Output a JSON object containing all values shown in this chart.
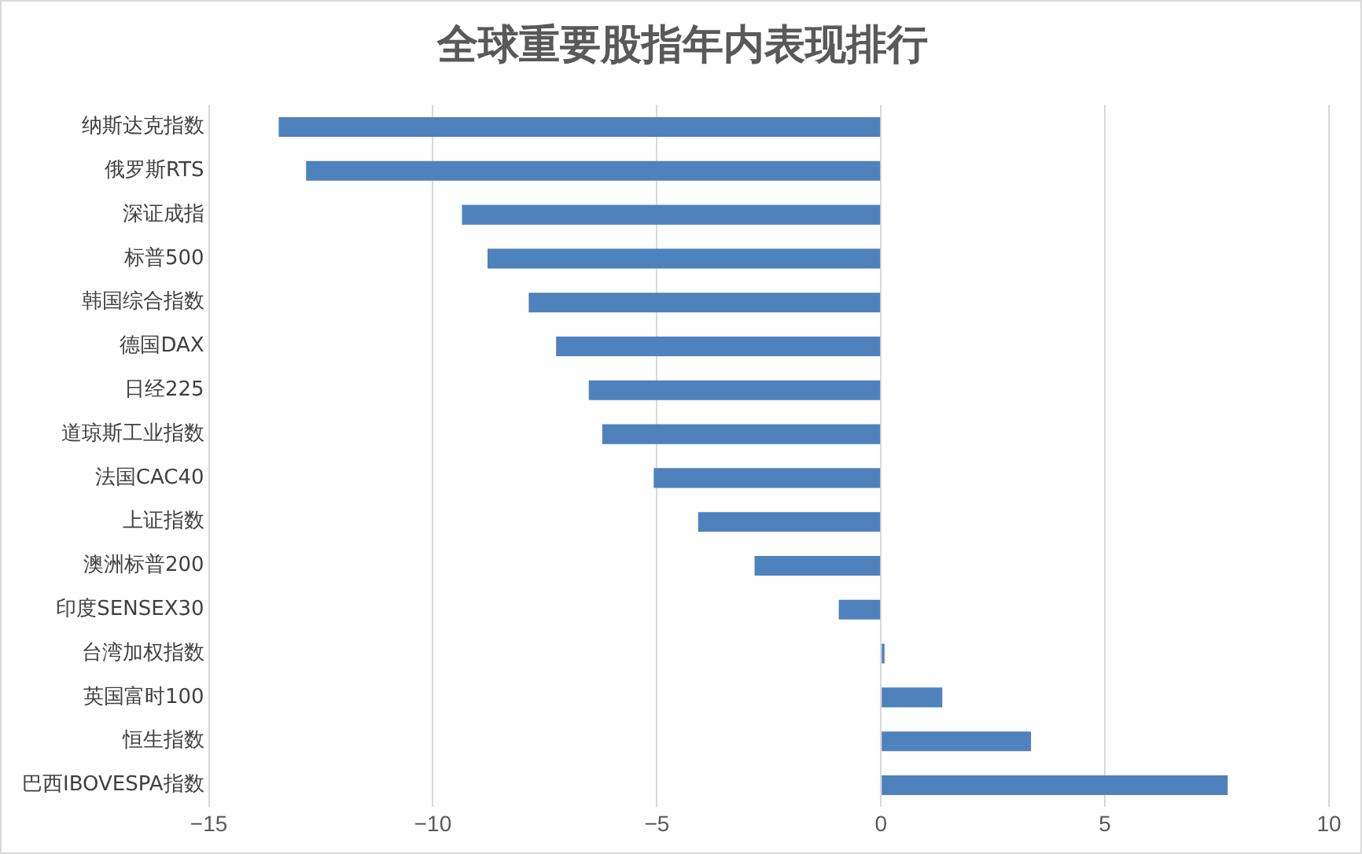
{
  "chart_data": {
    "type": "bar",
    "orientation": "horizontal",
    "title": "全球重要股指年内表现排行",
    "categories": [
      "纳斯达克指数",
      "俄罗斯RTS",
      "深证成指",
      "标普500",
      "韩国综合指数",
      "德国DAX",
      "日经225",
      "道琼斯工业指数",
      "法国CAC40",
      "上证指数",
      "澳洲标普200",
      "印度SENSEX30",
      "台湾加权指数",
      "英国富时100",
      "恒生指数",
      "巴西IBOVESPA指数"
    ],
    "values": [
      -13.44,
      -12.83,
      -9.35,
      -8.78,
      -7.86,
      -7.25,
      -6.52,
      -6.22,
      -5.07,
      -4.08,
      -2.82,
      -0.94,
      0.08,
      1.37,
      3.35,
      7.74
    ],
    "color": "#4f81bd",
    "xlim": [
      -15,
      10
    ],
    "xticks": [
      -15,
      -10,
      -5,
      0,
      5,
      10
    ],
    "grid": "x",
    "legend": false
  }
}
